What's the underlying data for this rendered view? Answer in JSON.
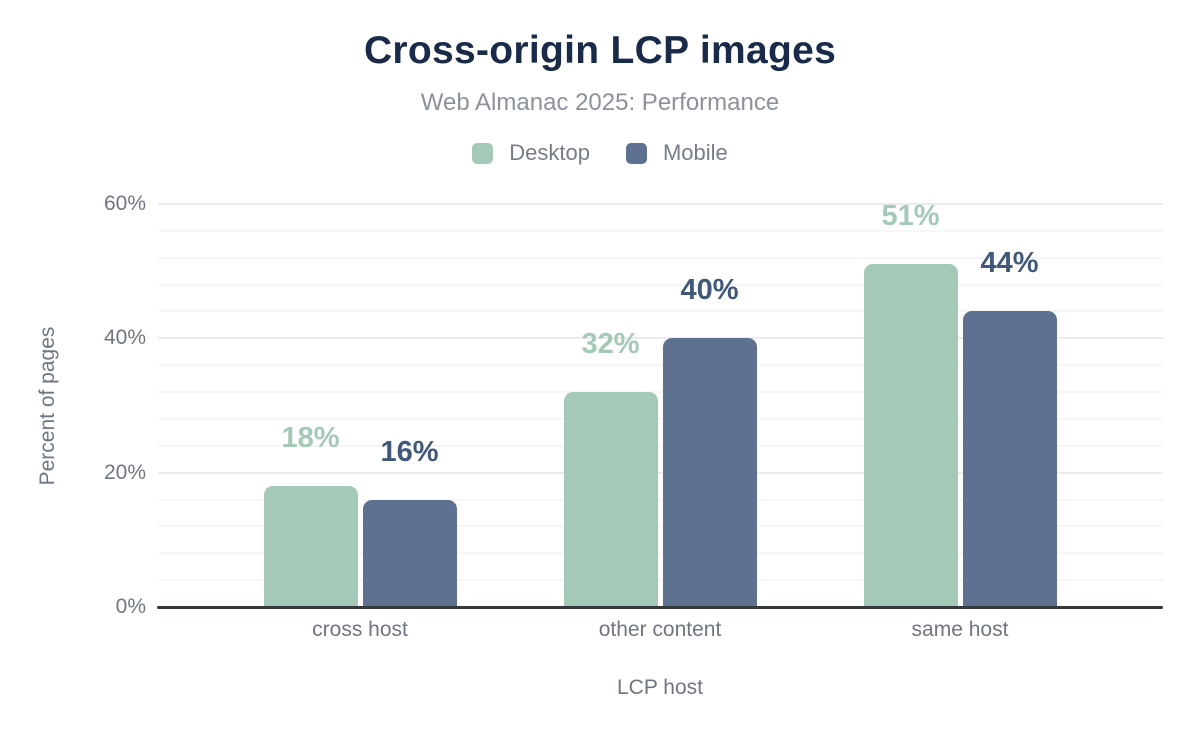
{
  "chart_data": {
    "type": "bar",
    "title": "Cross-origin LCP images",
    "subtitle": "Web Almanac 2025: Performance",
    "categories": [
      "cross host",
      "other content",
      "same host"
    ],
    "series": [
      {
        "name": "Desktop",
        "color": "#a4c9b6",
        "data_label_color": "#a4c9b6",
        "values": [
          18,
          32,
          51
        ],
        "data_labels": [
          "18%",
          "32%",
          "51%"
        ]
      },
      {
        "name": "Mobile",
        "color": "#5f7190",
        "data_label_color": "#41587a",
        "values": [
          16,
          40,
          44
        ],
        "data_labels": [
          "16%",
          "40%",
          "44%"
        ]
      }
    ],
    "xlabel": "LCP host",
    "ylabel": "Percent of pages",
    "ylim": [
      0,
      60
    ],
    "yticks": [
      0,
      20,
      40,
      60
    ],
    "ytick_labels": [
      "0%",
      "20%",
      "40%",
      "60%"
    ],
    "minor_grid_step_pct": 4,
    "grid": true,
    "legend_position": "top"
  },
  "colors": {
    "background": "#ffffff",
    "title": "#1a2b49",
    "subtitle": "#8b9299",
    "legend_text": "#767d87",
    "axis_text": "#6f7681",
    "axis_line": "#35383c",
    "grid_major": "#ececef",
    "grid_minor": "#f6f6f7"
  }
}
